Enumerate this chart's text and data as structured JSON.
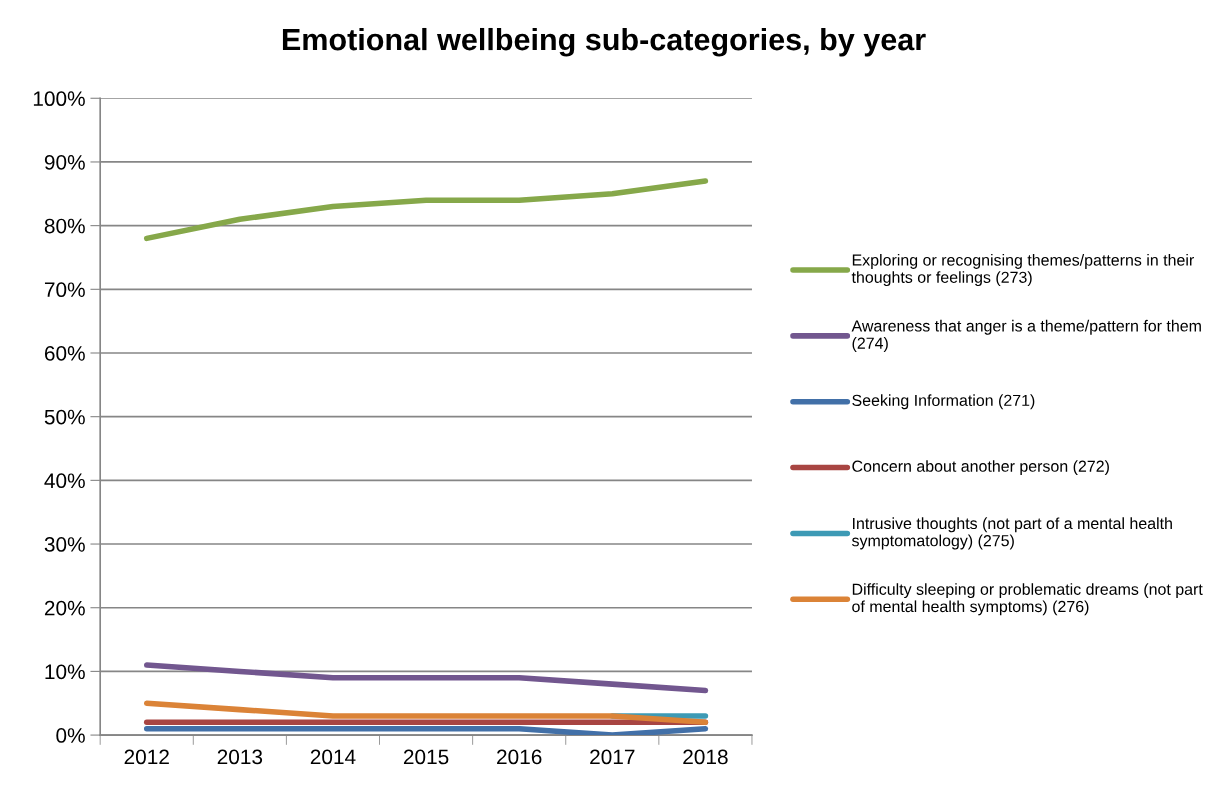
{
  "chart_data": {
    "type": "line",
    "title": "Emotional wellbeing sub-categories, by year",
    "categories": [
      "2012",
      "2013",
      "2014",
      "2015",
      "2016",
      "2017",
      "2018"
    ],
    "series": [
      {
        "name": "Exploring or recognising themes/patterns in their thoughts or feelings (273)",
        "color": "#86a84a",
        "values": [
          78,
          81,
          83,
          84,
          84,
          85,
          87
        ]
      },
      {
        "name": "Awareness that anger is a theme/pattern for them (274)",
        "color": "#72578f",
        "values": [
          11,
          10,
          9,
          9,
          9,
          8,
          7
        ]
      },
      {
        "name": "Seeking Information (271)",
        "color": "#4270a8",
        "values": [
          1,
          1,
          1,
          1,
          1,
          0,
          1
        ]
      },
      {
        "name": "Concern about another person (272)",
        "color": "#a84542",
        "values": [
          2,
          2,
          2,
          2,
          2,
          2,
          2
        ]
      },
      {
        "name": "Intrusive thoughts (not part of a mental health symptomatology) (275)",
        "color": "#3d9ab5",
        "values": [
          null,
          null,
          null,
          null,
          null,
          3,
          3
        ]
      },
      {
        "name": "Difficulty sleeping or problematic dreams (not part of mental health symptoms) (276)",
        "color": "#db8337",
        "values": [
          5,
          4,
          3,
          3,
          3,
          3,
          2
        ]
      }
    ],
    "ylim": [
      0,
      100
    ],
    "yticks": [
      {
        "value": 0,
        "label": "0%"
      },
      {
        "value": 10,
        "label": "10%"
      },
      {
        "value": 20,
        "label": "20%"
      },
      {
        "value": 30,
        "label": "30%"
      },
      {
        "value": 40,
        "label": "40%"
      },
      {
        "value": 50,
        "label": "50%"
      },
      {
        "value": 60,
        "label": "60%"
      },
      {
        "value": 70,
        "label": "70%"
      },
      {
        "value": 80,
        "label": "80%"
      },
      {
        "value": 90,
        "label": "90%"
      },
      {
        "value": 100,
        "label": "100%"
      }
    ],
    "grid": "y",
    "legend": "right",
    "marker": "none",
    "line_style": "solid"
  }
}
